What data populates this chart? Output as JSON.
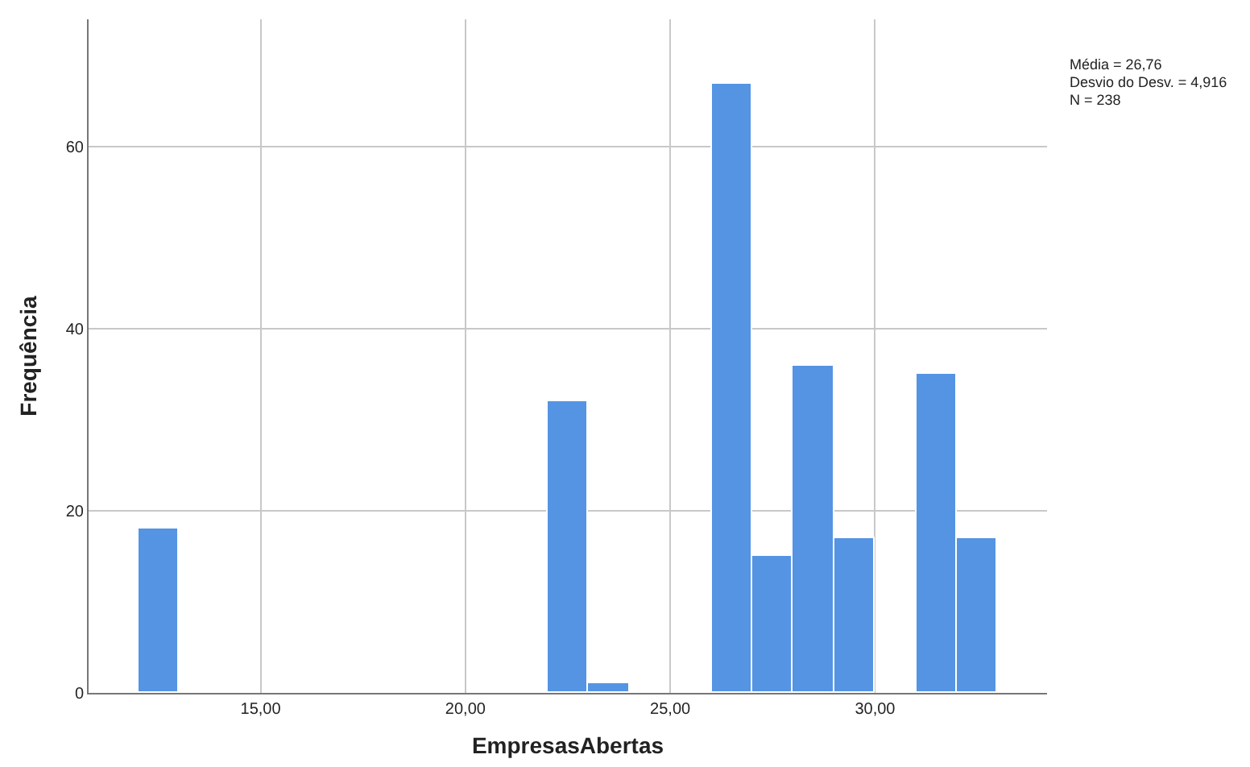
{
  "chart_data": {
    "type": "histogram",
    "xlabel": "EmpresasAbertas",
    "ylabel": "Frequência",
    "bins": [
      12,
      13,
      14,
      15,
      16,
      17,
      18,
      19,
      20,
      21,
      22,
      23,
      24,
      25,
      26,
      27,
      28,
      29,
      30,
      31,
      32,
      33
    ],
    "values": [
      18,
      0,
      0,
      0,
      0,
      0,
      0,
      0,
      0,
      0,
      32,
      1,
      0,
      0,
      67,
      15,
      36,
      17,
      0,
      35,
      17
    ],
    "color": "#5494e3",
    "xlim": [
      10.8,
      34.2
    ],
    "xticks": [
      {
        "value": 15,
        "label": "15,00"
      },
      {
        "value": 20,
        "label": "20,00"
      },
      {
        "value": 25,
        "label": "25,00"
      },
      {
        "value": 30,
        "label": "30,00"
      }
    ],
    "ylim": [
      0,
      74
    ],
    "yticks": [
      0,
      20,
      40,
      60
    ],
    "grid": true,
    "annotations": [
      "Média = 26,76",
      "Desvio do Desv. = 4,916",
      "N = 238"
    ]
  }
}
